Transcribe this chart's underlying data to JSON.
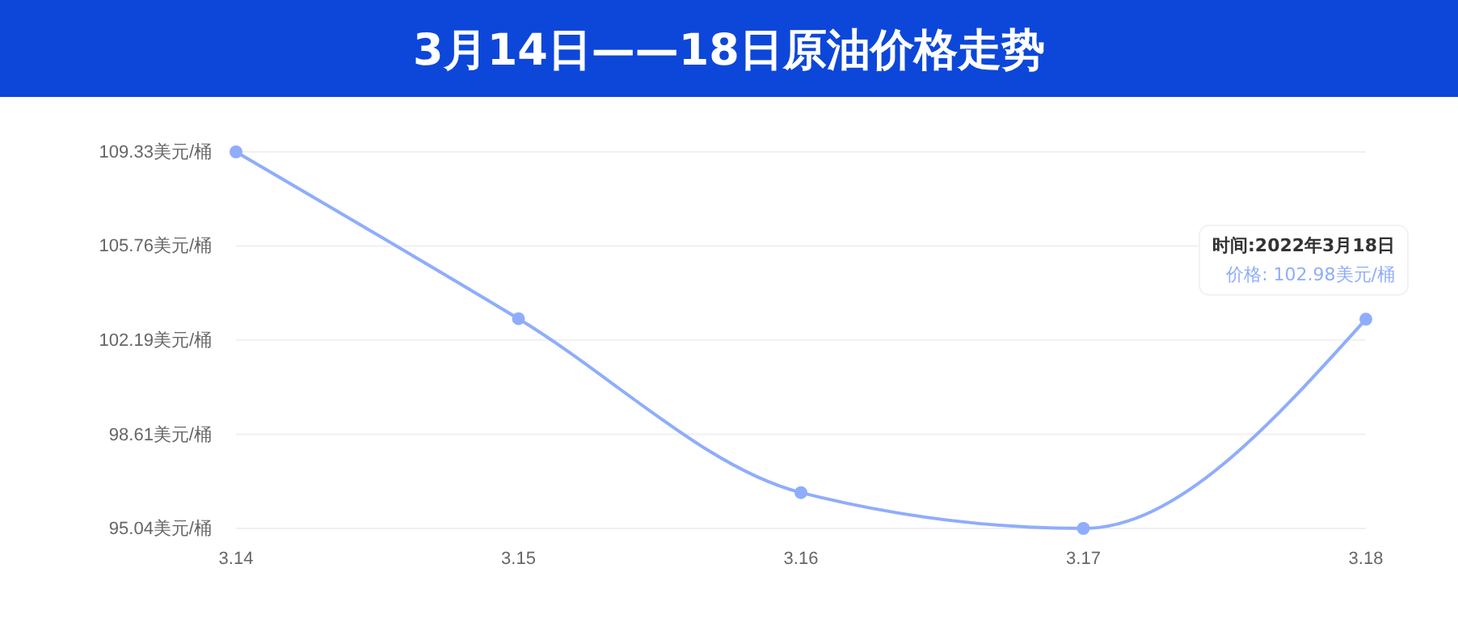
{
  "chart_data": {
    "type": "line",
    "title": "3月14日——18日原油价格走势",
    "categories": [
      "3.14",
      "3.15",
      "3.16",
      "3.17",
      "3.18"
    ],
    "series": [
      {
        "color": "#8fadfc",
        "values": [
          109.33,
          103.0,
          96.4,
          95.04,
          102.98
        ]
      }
    ],
    "ylim": [
      95.04,
      109.33
    ],
    "yticks": [
      {
        "value": 95.04,
        "label": "95.04美元/桶"
      },
      {
        "value": 98.61,
        "label": "98.61美元/桶"
      },
      {
        "value": 102.19,
        "label": "102.19美元/桶"
      },
      {
        "value": 105.76,
        "label": "105.76美元/桶"
      },
      {
        "value": 109.33,
        "label": "109.33美元/桶"
      }
    ],
    "grid": "y",
    "marker": "circle",
    "line_style": "solid",
    "annotations": [
      "时间:2022年3月18日",
      "价格: 102.98美元/桶"
    ]
  }
}
